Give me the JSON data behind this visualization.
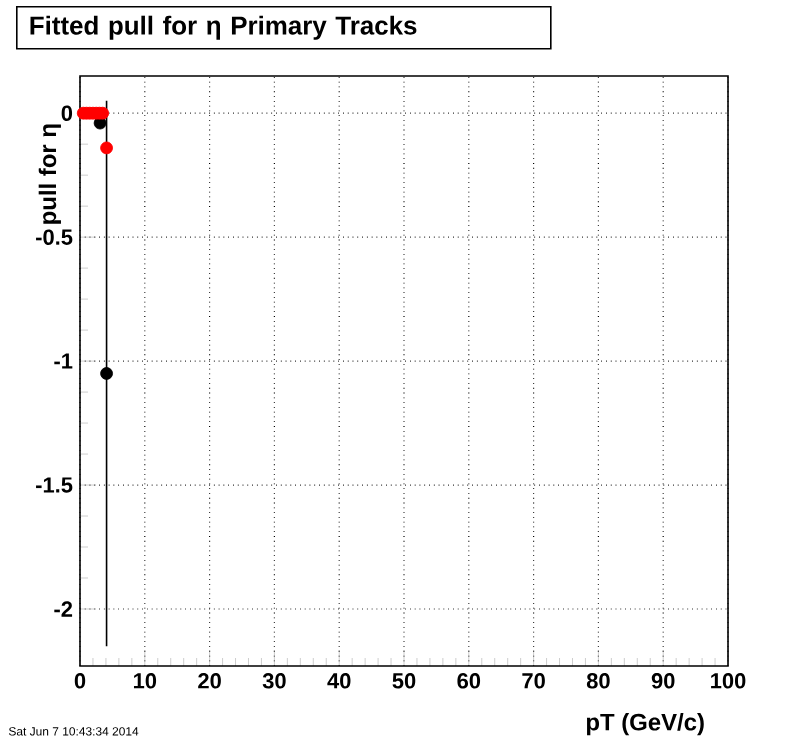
{
  "chart_data": {
    "type": "scatter",
    "title": "Fitted pull for  η  Primary Tracks",
    "xlabel": "pT (GeV/c)",
    "ylabel": "pull for  η",
    "xlim": [
      0,
      100
    ],
    "xticks": [
      0,
      10,
      20,
      30,
      40,
      50,
      60,
      70,
      80,
      90,
      100
    ],
    "ylim": [
      -2.23,
      0.15
    ],
    "yticks": [
      -2,
      -1.5,
      -1,
      -0.5,
      0
    ],
    "grid": true,
    "marker": "circle",
    "series": [
      {
        "color": "#000000",
        "x": [
          3.1,
          4.1
        ],
        "values": [
          -0.04,
          -1.05
        ],
        "errors": [
          null,
          1.1
        ]
      },
      {
        "color": "#ff0000",
        "x": [
          0.5,
          1.0,
          1.5,
          2.0,
          2.5,
          3.0,
          3.5,
          4.1
        ],
        "values": [
          0,
          0,
          0,
          0,
          0,
          0,
          0,
          -0.14
        ]
      }
    ],
    "annotations": [
      "Sat Jun  7 10:43:34 2014"
    ]
  }
}
